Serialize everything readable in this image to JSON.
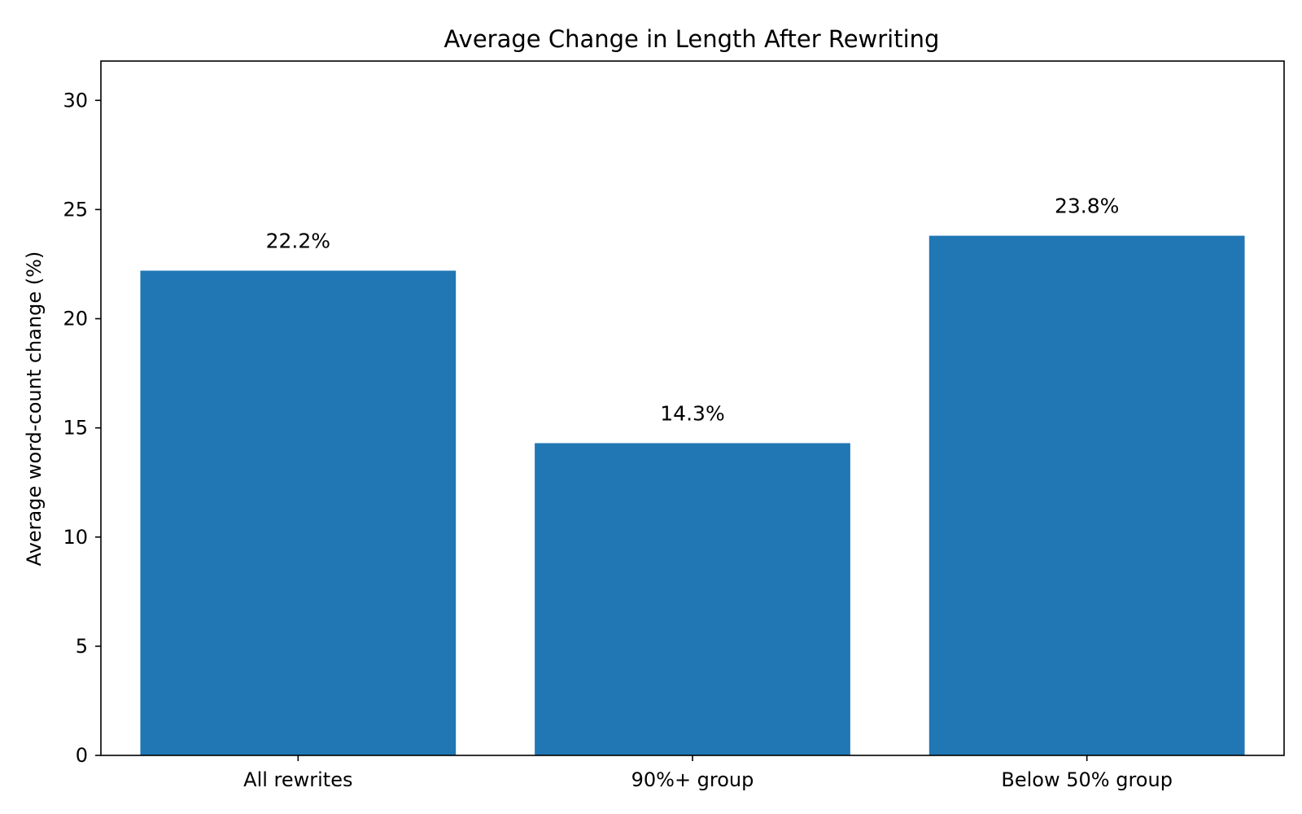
{
  "chart_data": {
    "type": "bar",
    "title": "Average Change in Length After Rewriting",
    "xlabel": "",
    "ylabel": "Average word-count change (%)",
    "categories": [
      "All rewrites",
      "90%+ group",
      "Below 50% group"
    ],
    "values": [
      22.2,
      14.3,
      23.8
    ],
    "data_labels": [
      "22.2%",
      "14.3%",
      "23.8%"
    ],
    "ylim": [
      0,
      31.8
    ],
    "yticks": [
      0,
      5,
      10,
      15,
      20,
      25,
      30
    ],
    "bar_color": "#2077b4",
    "grid": false,
    "legend": "none"
  }
}
